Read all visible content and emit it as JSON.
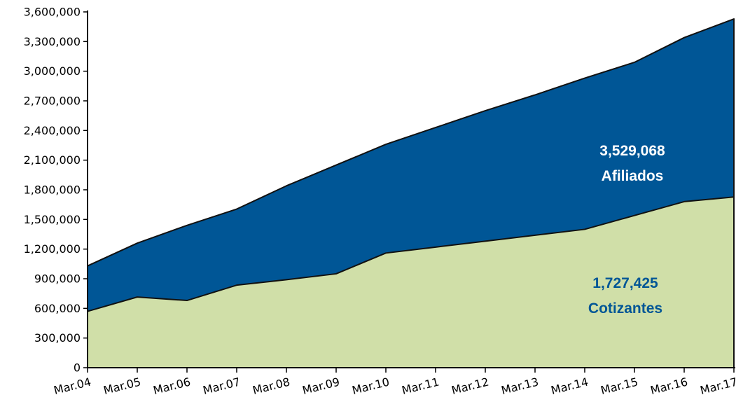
{
  "chart_data": {
    "type": "area",
    "x": [
      "Mar.04",
      "Mar.05",
      "Mar.06",
      "Mar.07",
      "Mar.08",
      "Mar.09",
      "Mar.10",
      "Mar.11",
      "Mar.12",
      "Mar.13",
      "Mar.14",
      "Mar.15",
      "Mar.16",
      "Mar.17"
    ],
    "series": [
      {
        "key": "afiliados",
        "color": "#005696",
        "values": [
          1030000,
          1260000,
          1440000,
          1605000,
          1840000,
          2050000,
          2260000,
          2430000,
          2600000,
          2760000,
          2930000,
          3090000,
          3340000,
          3529068
        ]
      },
      {
        "key": "cotizantes",
        "color": "#d0dfa8",
        "values": [
          570000,
          715000,
          680000,
          835000,
          890000,
          950000,
          1160000,
          1220000,
          1280000,
          1340000,
          1400000,
          1540000,
          1680000,
          1727425
        ]
      }
    ],
    "ylim": [
      0,
      3600000
    ],
    "yticks": [
      0,
      300000,
      600000,
      900000,
      1200000,
      1500000,
      1800000,
      2100000,
      2400000,
      2700000,
      3000000,
      3300000,
      3600000
    ],
    "ytick_labels": [
      "0",
      "300,000",
      "600,000",
      "900,000",
      "1,200,000",
      "1,500,000",
      "1,800,000",
      "2,100,000",
      "2,400,000",
      "2,700,000",
      "3,000,000",
      "3,300,000",
      "3,600,000"
    ],
    "grid": false,
    "annotations": [
      {
        "key": "afiliados",
        "value_text": "3,529,068",
        "label_text": "Afiliados",
        "color": "#ffffff"
      },
      {
        "key": "cotizantes",
        "value_text": "1,727,425",
        "label_text": "Cotizantes",
        "color": "#005696"
      }
    ]
  }
}
